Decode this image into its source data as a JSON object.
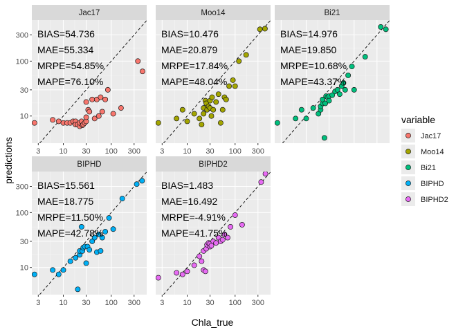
{
  "chart_data": {
    "type": "scatter",
    "xlabel": "Chla_true",
    "ylabel": "predictions",
    "x_scale": "log10",
    "y_scale": "log10",
    "xlim": [
      2.2,
      550
    ],
    "ylim": [
      3.2,
      560
    ],
    "x_ticks": [
      {
        "value": 3,
        "label": "3"
      },
      {
        "value": 10,
        "label": "10"
      },
      {
        "value": 30,
        "label": "30"
      },
      {
        "value": 100,
        "label": "100"
      },
      {
        "value": 300,
        "label": "300"
      }
    ],
    "y_ticks": [
      {
        "value": 10,
        "label": "10"
      },
      {
        "value": 30,
        "label": "30"
      },
      {
        "value": 100,
        "label": "100"
      },
      {
        "value": 300,
        "label": "300"
      }
    ],
    "reference_line": "1:1 dashed",
    "grid": true,
    "legend": {
      "title": "variable",
      "placement": "right",
      "entries": [
        {
          "name": "Jac17",
          "color": "#F8766D"
        },
        {
          "name": "Moo14",
          "color": "#A3A500"
        },
        {
          "name": "Bi21",
          "color": "#00BF7D"
        },
        {
          "name": "BIPHD",
          "color": "#00B0F6"
        },
        {
          "name": "BIPHD2",
          "color": "#E76BF3"
        }
      ]
    },
    "panels": [
      {
        "name": "Jac17",
        "color": "#F8766D",
        "stats": [
          "BIAS=54.736",
          "MAE=55.334",
          "MRPE=54.85%",
          "MAPE=76.10%"
        ],
        "points": [
          [
            2.5,
            7.5
          ],
          [
            6,
            8.5
          ],
          [
            8,
            8
          ],
          [
            10,
            7.5
          ],
          [
            12,
            7.5
          ],
          [
            14,
            7.5
          ],
          [
            16,
            8
          ],
          [
            18,
            8
          ],
          [
            18,
            7
          ],
          [
            20,
            7
          ],
          [
            22,
            6.5
          ],
          [
            22,
            7.5
          ],
          [
            24,
            8
          ],
          [
            25,
            6.8
          ],
          [
            26,
            7
          ],
          [
            28,
            7.5
          ],
          [
            30,
            8
          ],
          [
            30,
            9.5
          ],
          [
            30,
            18
          ],
          [
            33,
            13
          ],
          [
            35,
            12
          ],
          [
            40,
            20
          ],
          [
            45,
            9
          ],
          [
            50,
            20
          ],
          [
            55,
            10
          ],
          [
            60,
            22
          ],
          [
            65,
            12
          ],
          [
            75,
            20
          ],
          [
            85,
            30
          ],
          [
            110,
            11
          ],
          [
            160,
            14
          ],
          [
            360,
            100
          ],
          [
            450,
            65
          ]
        ]
      },
      {
        "name": "Moo14",
        "color": "#A3A500",
        "stats": [
          "BIAS=10.476",
          "MAE=20.879",
          "MRPE=17.84%",
          "MAPE=48.04%"
        ],
        "points": [
          [
            2.5,
            7.5
          ],
          [
            6,
            9
          ],
          [
            8,
            13
          ],
          [
            10,
            8
          ],
          [
            14,
            11
          ],
          [
            18,
            9
          ],
          [
            20,
            7
          ],
          [
            22,
            11
          ],
          [
            22,
            14
          ],
          [
            24,
            19
          ],
          [
            25,
            17
          ],
          [
            26,
            13
          ],
          [
            28,
            15
          ],
          [
            30,
            14
          ],
          [
            30,
            19
          ],
          [
            32,
            10
          ],
          [
            33,
            22
          ],
          [
            35,
            13
          ],
          [
            40,
            18
          ],
          [
            45,
            25
          ],
          [
            50,
            7.5
          ],
          [
            55,
            13
          ],
          [
            60,
            22
          ],
          [
            65,
            20
          ],
          [
            75,
            35
          ],
          [
            90,
            45
          ],
          [
            100,
            35
          ],
          [
            120,
            100
          ],
          [
            170,
            130
          ],
          [
            330,
            380
          ],
          [
            420,
            390
          ]
        ]
      },
      {
        "name": "Bi21",
        "color": "#00BF7D",
        "stats": [
          "BIAS=14.976",
          "MAE=19.850",
          "MRPE=10.68%",
          "MAPE=43.37%"
        ],
        "points": [
          [
            2.5,
            7.5
          ],
          [
            6,
            9
          ],
          [
            8,
            13
          ],
          [
            10,
            9
          ],
          [
            14,
            14
          ],
          [
            18,
            11
          ],
          [
            20,
            13
          ],
          [
            20,
            15
          ],
          [
            22,
            17
          ],
          [
            22,
            20
          ],
          [
            24,
            4
          ],
          [
            25,
            17
          ],
          [
            26,
            23
          ],
          [
            28,
            22
          ],
          [
            30,
            23
          ],
          [
            30,
            19
          ],
          [
            35,
            24
          ],
          [
            40,
            28
          ],
          [
            45,
            30
          ],
          [
            50,
            25
          ],
          [
            55,
            35
          ],
          [
            60,
            40
          ],
          [
            65,
            30
          ],
          [
            75,
            55
          ],
          [
            90,
            80
          ],
          [
            100,
            30
          ],
          [
            170,
            120
          ],
          [
            360,
            420
          ],
          [
            460,
            380
          ]
        ]
      },
      {
        "name": "BIPHD",
        "color": "#00B0F6",
        "stats": [
          "BIAS=15.561",
          "MAE=18.775",
          "MRPE=11.50%",
          "MAPE=42.78%"
        ],
        "points": [
          [
            2.5,
            7.5
          ],
          [
            6,
            9
          ],
          [
            8,
            7.5
          ],
          [
            10,
            9
          ],
          [
            14,
            13
          ],
          [
            18,
            15
          ],
          [
            20,
            4
          ],
          [
            22,
            17
          ],
          [
            22,
            20
          ],
          [
            24,
            55
          ],
          [
            25,
            20
          ],
          [
            26,
            23
          ],
          [
            28,
            24
          ],
          [
            30,
            12
          ],
          [
            32,
            24
          ],
          [
            35,
            21
          ],
          [
            40,
            30
          ],
          [
            45,
            35
          ],
          [
            50,
            19
          ],
          [
            55,
            40
          ],
          [
            60,
            20
          ],
          [
            65,
            35
          ],
          [
            75,
            45
          ],
          [
            90,
            80
          ],
          [
            110,
            50
          ],
          [
            170,
            180
          ],
          [
            340,
            330
          ],
          [
            440,
            380
          ]
        ]
      },
      {
        "name": "BIPHD2",
        "color": "#E76BF3",
        "stats": [
          "BIAS=1.483",
          "MAE=16.492",
          "MRPE=-4.91%",
          "MAPE=41.75%"
        ],
        "points": [
          [
            2.5,
            6.5
          ],
          [
            6,
            8
          ],
          [
            8,
            7.5
          ],
          [
            10,
            8.5
          ],
          [
            14,
            11
          ],
          [
            18,
            16
          ],
          [
            20,
            13
          ],
          [
            22,
            20
          ],
          [
            22,
            9
          ],
          [
            24,
            8.5
          ],
          [
            25,
            22
          ],
          [
            26,
            26
          ],
          [
            28,
            28
          ],
          [
            30,
            24
          ],
          [
            30,
            27
          ],
          [
            32,
            25
          ],
          [
            35,
            30
          ],
          [
            40,
            28
          ],
          [
            45,
            35
          ],
          [
            50,
            30
          ],
          [
            55,
            32
          ],
          [
            60,
            40
          ],
          [
            70,
            35
          ],
          [
            80,
            55
          ],
          [
            100,
            90
          ],
          [
            140,
            60
          ],
          [
            350,
            360
          ],
          [
            430,
            510
          ]
        ]
      }
    ]
  }
}
